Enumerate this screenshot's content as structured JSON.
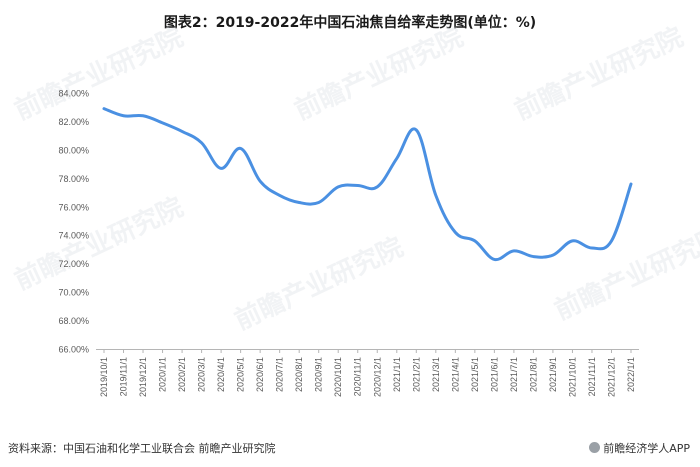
{
  "title": "图表2：2019-2022年中国石油焦自给率走势图(单位：%)",
  "source": "资料来源：中国石油和化学工业联合会 前瞻产业研究院",
  "brand": "前瞻经济学人APP",
  "watermark": "前瞻产业研究院",
  "colors": {
    "line": "#4A90E2",
    "axis": "#b5b5b5",
    "text": "#595959"
  },
  "chart_data": {
    "type": "line",
    "ylim": [
      66,
      84
    ],
    "y_ticks": [
      {
        "v": 66,
        "label": "66.00%"
      },
      {
        "v": 68,
        "label": "68.00%"
      },
      {
        "v": 70,
        "label": "70.00%"
      },
      {
        "v": 72,
        "label": "72.00%"
      },
      {
        "v": 74,
        "label": "74.00%"
      },
      {
        "v": 76,
        "label": "76.00%"
      },
      {
        "v": 78,
        "label": "78.00%"
      },
      {
        "v": 80,
        "label": "80.00%"
      },
      {
        "v": 82,
        "label": "82.00%"
      },
      {
        "v": 84,
        "label": "84.00%"
      }
    ],
    "categories": [
      "2019/10/1",
      "2019/11/1",
      "2019/12/1",
      "2020/1/1",
      "2020/2/1",
      "2020/3/1",
      "2020/4/1",
      "2020/5/1",
      "2020/6/1",
      "2020/7/1",
      "2020/8/1",
      "2020/9/1",
      "2020/10/1",
      "2020/11/1",
      "2020/12/1",
      "2021/1/1",
      "2021/2/1",
      "2021/3/1",
      "2021/4/1",
      "2021/5/1",
      "2021/6/1",
      "2021/7/1",
      "2021/8/1",
      "2021/9/1",
      "2021/10/1",
      "2021/11/1",
      "2021/12/1",
      "2022/1/1"
    ],
    "series": [
      {
        "values": [
          82.9,
          82.4,
          82.4,
          81.9,
          81.3,
          80.5,
          78.7,
          80.1,
          77.8,
          76.8,
          76.3,
          76.3,
          77.4,
          77.5,
          77.4,
          79.4,
          81.4,
          76.8,
          74.2,
          73.6,
          72.3,
          72.9,
          72.5,
          72.6,
          73.6,
          73.1,
          73.6,
          77.6
        ]
      }
    ]
  }
}
